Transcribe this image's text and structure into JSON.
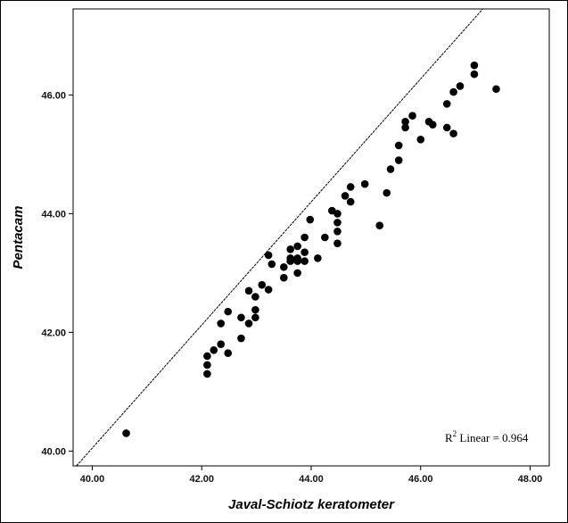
{
  "chart_data": {
    "type": "scatter",
    "title": "",
    "xlabel": "Javal-Schiotz keratometer",
    "ylabel": "Pentacam",
    "xlim": [
      39.65,
      48.35
    ],
    "ylim": [
      39.75,
      47.45
    ],
    "xticks": [
      40,
      42,
      44,
      46,
      48
    ],
    "yticks": [
      40,
      42,
      44,
      46
    ],
    "xtick_labels": [
      "40.00",
      "42.00",
      "44.00",
      "46.00",
      "48.00"
    ],
    "ytick_labels": [
      "40.00",
      "42.00",
      "44.00",
      "46.00"
    ],
    "grid": false,
    "fit_line": {
      "slope": 1.037,
      "intercept": -1.43
    },
    "annotation": {
      "r_label": "R",
      "sup": "2",
      "text": " Linear = 0.964"
    },
    "points": [
      [
        40.62,
        40.3
      ],
      [
        42.1,
        41.3
      ],
      [
        42.1,
        41.45
      ],
      [
        42.1,
        41.6
      ],
      [
        42.22,
        41.7
      ],
      [
        42.35,
        41.8
      ],
      [
        42.35,
        42.15
      ],
      [
        42.48,
        41.65
      ],
      [
        42.48,
        42.35
      ],
      [
        42.72,
        41.9
      ],
      [
        42.72,
        42.25
      ],
      [
        42.86,
        42.15
      ],
      [
        42.86,
        42.7
      ],
      [
        42.98,
        42.25
      ],
      [
        42.98,
        42.38
      ],
      [
        42.98,
        42.6
      ],
      [
        43.1,
        42.8
      ],
      [
        43.22,
        42.72
      ],
      [
        43.22,
        43.3
      ],
      [
        43.28,
        43.15
      ],
      [
        43.5,
        42.92
      ],
      [
        43.5,
        43.1
      ],
      [
        43.62,
        43.2
      ],
      [
        43.62,
        43.25
      ],
      [
        43.62,
        43.4
      ],
      [
        43.75,
        43.0
      ],
      [
        43.75,
        43.2
      ],
      [
        43.75,
        43.25
      ],
      [
        43.75,
        43.45
      ],
      [
        43.88,
        43.2
      ],
      [
        43.88,
        43.35
      ],
      [
        43.88,
        43.6
      ],
      [
        43.98,
        43.9
      ],
      [
        44.12,
        43.25
      ],
      [
        44.25,
        43.6
      ],
      [
        44.38,
        44.05
      ],
      [
        44.48,
        43.5
      ],
      [
        44.48,
        43.7
      ],
      [
        44.48,
        43.85
      ],
      [
        44.48,
        44.0
      ],
      [
        44.62,
        44.3
      ],
      [
        44.72,
        44.2
      ],
      [
        44.72,
        44.45
      ],
      [
        44.98,
        44.5
      ],
      [
        45.25,
        43.8
      ],
      [
        45.38,
        44.35
      ],
      [
        45.45,
        44.75
      ],
      [
        45.6,
        44.9
      ],
      [
        45.6,
        45.15
      ],
      [
        45.72,
        45.45
      ],
      [
        45.72,
        45.55
      ],
      [
        45.85,
        45.65
      ],
      [
        46.0,
        45.25
      ],
      [
        46.15,
        45.55
      ],
      [
        46.22,
        45.5
      ],
      [
        46.48,
        45.45
      ],
      [
        46.48,
        45.85
      ],
      [
        46.6,
        45.35
      ],
      [
        46.6,
        46.05
      ],
      [
        46.72,
        46.15
      ],
      [
        46.98,
        46.35
      ],
      [
        46.98,
        46.5
      ],
      [
        47.38,
        46.1
      ]
    ]
  }
}
